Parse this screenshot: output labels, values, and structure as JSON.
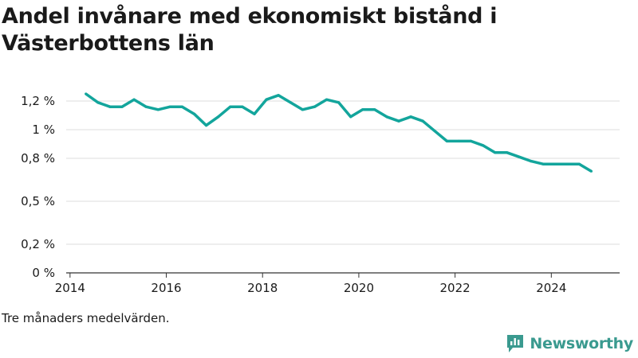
{
  "title": "Andel invånare med ekonomiskt bistånd i Västerbottens län",
  "note": "Tre månaders medelvärden.",
  "brand": {
    "name": "Newsworthy",
    "icon": "newsworthy-logo-icon",
    "color": "#3a9a8f"
  },
  "colors": {
    "line": "#13a59c",
    "grid": "#dcdcdc",
    "axis": "#333333"
  },
  "chart_data": {
    "type": "line",
    "title": "Andel invånare med ekonomiskt bistånd i Västerbottens län",
    "xlabel": "",
    "ylabel": "",
    "grid": true,
    "xlim": [
      2013.92,
      2025.42
    ],
    "ylim": [
      0,
      1.35
    ],
    "x_ticks": [
      2014,
      2016,
      2018,
      2020,
      2022,
      2024
    ],
    "x_tick_labels": [
      "2014",
      "2016",
      "2018",
      "2020",
      "2022",
      "2024"
    ],
    "y_ticks": [
      0,
      0.2,
      0.5,
      0.8,
      1.0,
      1.2
    ],
    "y_tick_labels": [
      "0 %",
      "0,2 %",
      "0,5 %",
      "0,8 %",
      "1 %",
      "1,2 %"
    ],
    "series": [
      {
        "x": [
          2014.33,
          2014.58,
          2014.83,
          2015.08,
          2015.33,
          2015.58,
          2015.83,
          2016.08,
          2016.33,
          2016.58,
          2016.83,
          2017.08,
          2017.33,
          2017.58,
          2017.83,
          2018.08,
          2018.33,
          2018.58,
          2018.83,
          2019.08,
          2019.33,
          2019.58,
          2019.83,
          2020.08,
          2020.33,
          2020.58,
          2020.83,
          2021.08,
          2021.33,
          2021.58,
          2021.83,
          2022.08,
          2022.33,
          2022.58,
          2022.83,
          2023.08,
          2023.33,
          2023.58,
          2023.83,
          2024.08,
          2024.33,
          2024.58,
          2024.83
        ],
        "values": [
          1.25,
          1.19,
          1.16,
          1.16,
          1.21,
          1.16,
          1.14,
          1.16,
          1.16,
          1.11,
          1.03,
          1.09,
          1.16,
          1.16,
          1.11,
          1.21,
          1.24,
          1.19,
          1.14,
          1.16,
          1.21,
          1.19,
          1.09,
          1.14,
          1.14,
          1.09,
          1.06,
          1.09,
          1.06,
          0.99,
          0.92,
          0.92,
          0.92,
          0.89,
          0.84,
          0.84,
          0.81,
          0.78,
          0.76,
          0.76,
          0.76,
          0.76,
          0.71
        ]
      }
    ]
  }
}
